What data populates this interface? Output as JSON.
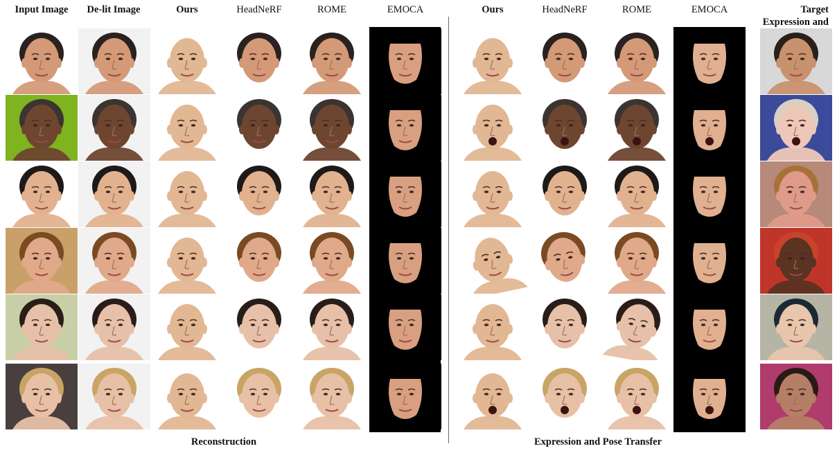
{
  "headers": {
    "left": [
      "Input Image",
      "De-lit Image",
      "Ours",
      "HeadNeRF",
      "ROME",
      "EMOCA"
    ],
    "right": [
      "Ours",
      "HeadNeRF",
      "ROME",
      "EMOCA",
      "Target Expression and Pose"
    ]
  },
  "bold_headers": [
    "Input Image",
    "De-lit Image",
    "Ours",
    "Target Expression and Pose"
  ],
  "sections": {
    "left": "Reconstruction",
    "right": "Expression and Pose Transfer"
  },
  "rows": 6,
  "colors": {
    "skin_bald": "#e2b794",
    "skin_dark": "#7a4f36",
    "emoca_bg": "#000000",
    "divider": "#6a6a6a"
  }
}
